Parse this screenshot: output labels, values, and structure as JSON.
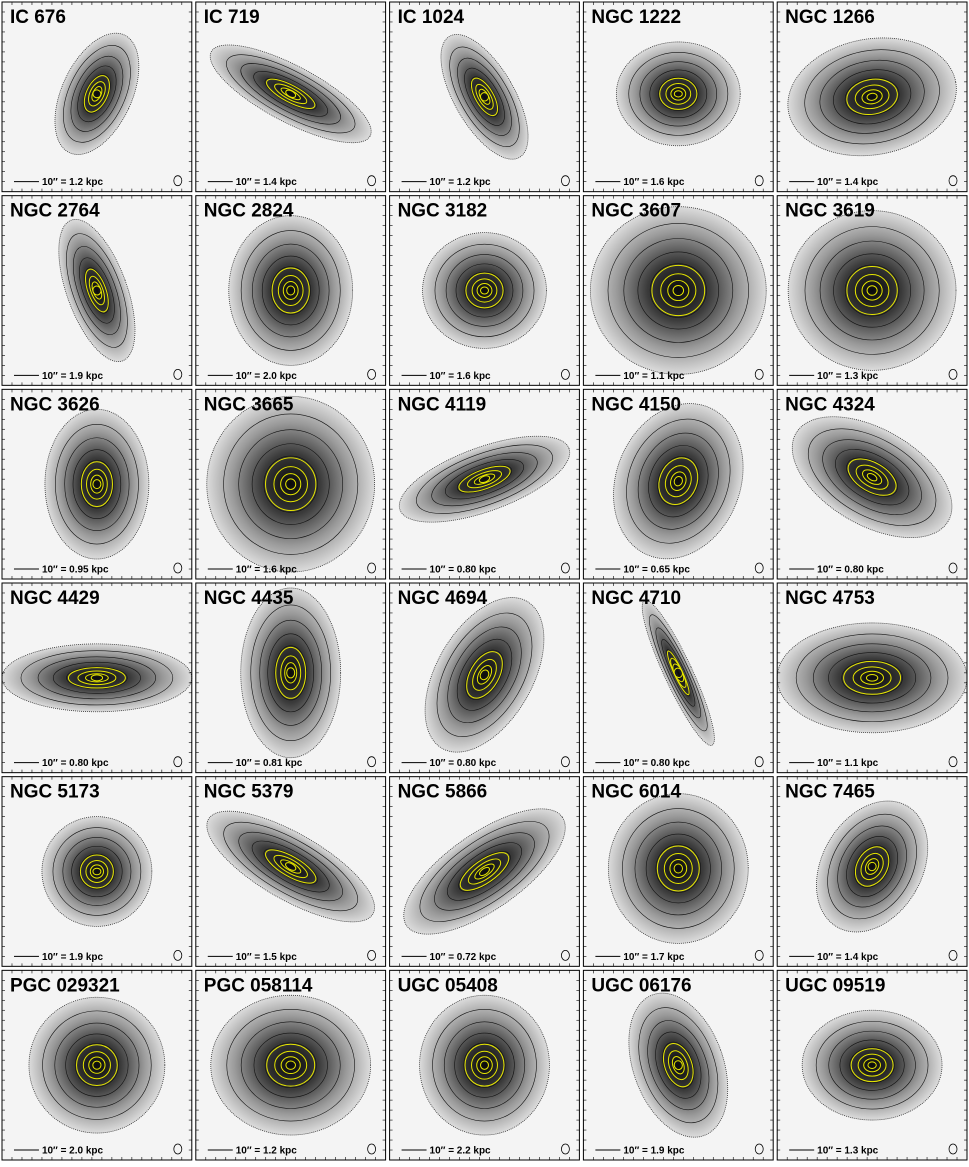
{
  "panels": [
    {
      "name": "IC 676",
      "scale": "10″ = 1.2 kpc"
    },
    {
      "name": "IC 719",
      "scale": "10″ = 1.4 kpc"
    },
    {
      "name": "IC 1024",
      "scale": "10″ = 1.2 kpc"
    },
    {
      "name": "NGC 1222",
      "scale": "10″ = 1.6 kpc"
    },
    {
      "name": "NGC 1266",
      "scale": "10″ = 1.4 kpc"
    },
    {
      "name": "NGC 2764",
      "scale": "10″ = 1.9 kpc"
    },
    {
      "name": "NGC 2824",
      "scale": "10″ = 2.0 kpc"
    },
    {
      "name": "NGC 3182",
      "scale": "10″ = 1.6 kpc"
    },
    {
      "name": "NGC 3607",
      "scale": "10″ = 1.1 kpc"
    },
    {
      "name": "NGC 3619",
      "scale": "10″ = 1.3 kpc"
    },
    {
      "name": "NGC 3626",
      "scale": "10″ = 0.95 kpc"
    },
    {
      "name": "NGC 3665",
      "scale": "10″ = 1.6 kpc"
    },
    {
      "name": "NGC 4119",
      "scale": "10″ = 0.80 kpc"
    },
    {
      "name": "NGC 4150",
      "scale": "10″ = 0.65 kpc"
    },
    {
      "name": "NGC 4324",
      "scale": "10″ = 0.80 kpc"
    },
    {
      "name": "NGC 4429",
      "scale": "10″ = 0.80 kpc"
    },
    {
      "name": "NGC 4435",
      "scale": "10″ = 0.81 kpc"
    },
    {
      "name": "NGC 4694",
      "scale": "10″ = 0.80 kpc"
    },
    {
      "name": "NGC 4710",
      "scale": "10″ = 0.80 kpc"
    },
    {
      "name": "NGC 4753",
      "scale": "10″ = 1.1 kpc"
    },
    {
      "name": "NGC 5173",
      "scale": "10″ = 1.9 kpc"
    },
    {
      "name": "NGC 5379",
      "scale": "10″ = 1.5 kpc"
    },
    {
      "name": "NGC 5866",
      "scale": "10″ = 0.72 kpc"
    },
    {
      "name": "NGC 6014",
      "scale": "10″ = 1.7 kpc"
    },
    {
      "name": "NGC 7465",
      "scale": "10″ = 1.4 kpc"
    },
    {
      "name": "PGC 029321",
      "scale": "10″ = 2.0 kpc"
    },
    {
      "name": "PGC 058114",
      "scale": "10″ = 1.2 kpc"
    },
    {
      "name": "UGC 05408",
      "scale": "10″ = 2.2 kpc"
    },
    {
      "name": "UGC 06176",
      "scale": "10″ = 1.9 kpc"
    },
    {
      "name": "UGC 09519",
      "scale": "10″ = 1.3 kpc"
    }
  ]
}
